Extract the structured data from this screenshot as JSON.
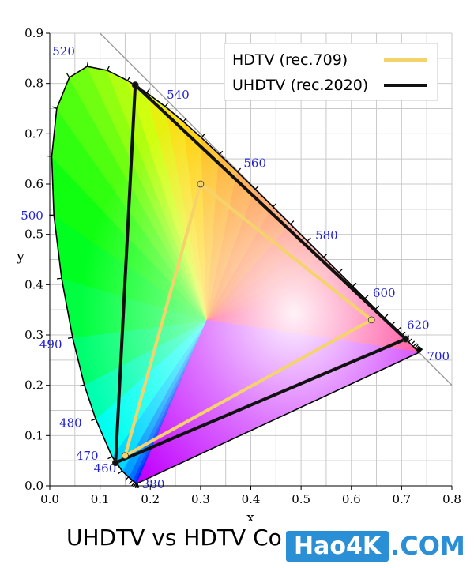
{
  "caption": "UHDTV vs HDTV Co",
  "watermark": {
    "main": "Hao4K",
    "suffix": ".COM"
  },
  "chart_data": {
    "type": "scatter",
    "xlabel": "x",
    "ylabel": "y",
    "xlim": [
      0,
      0.8
    ],
    "ylim": [
      0,
      0.9
    ],
    "grid": true,
    "legend": "top-right",
    "x_ticks": [
      "0.0",
      "0.1",
      "0.2",
      "0.3",
      "0.4",
      "0.5",
      "0.6",
      "0.7",
      "0.8"
    ],
    "y_ticks": [
      "0.0",
      "0.1",
      "0.2",
      "0.3",
      "0.4",
      "0.5",
      "0.6",
      "0.7",
      "0.8",
      "0.9"
    ],
    "spectral_locus": [
      [
        0.1741,
        0.005
      ],
      [
        0.1738,
        0.0049
      ],
      [
        0.1733,
        0.0048
      ],
      [
        0.1726,
        0.0048
      ],
      [
        0.1714,
        0.0051
      ],
      [
        0.1689,
        0.0069
      ],
      [
        0.1644,
        0.0109
      ],
      [
        0.1566,
        0.0177
      ],
      [
        0.144,
        0.0297
      ],
      [
        0.1241,
        0.0578
      ],
      [
        0.0913,
        0.1327
      ],
      [
        0.0687,
        0.2007
      ],
      [
        0.0454,
        0.295
      ],
      [
        0.0235,
        0.4127
      ],
      [
        0.0082,
        0.5384
      ],
      [
        0.0039,
        0.6548
      ],
      [
        0.0139,
        0.7502
      ],
      [
        0.0389,
        0.812
      ],
      [
        0.0743,
        0.8338
      ],
      [
        0.1142,
        0.8262
      ],
      [
        0.1547,
        0.8059
      ],
      [
        0.1929,
        0.7816
      ],
      [
        0.2296,
        0.7543
      ],
      [
        0.2658,
        0.7243
      ],
      [
        0.3016,
        0.6923
      ],
      [
        0.3373,
        0.6589
      ],
      [
        0.3731,
        0.6245
      ],
      [
        0.4087,
        0.5896
      ],
      [
        0.4441,
        0.5547
      ],
      [
        0.4788,
        0.5202
      ],
      [
        0.5125,
        0.4866
      ],
      [
        0.5448,
        0.4544
      ],
      [
        0.5752,
        0.4242
      ],
      [
        0.6029,
        0.3965
      ],
      [
        0.627,
        0.3725
      ],
      [
        0.6482,
        0.3514
      ],
      [
        0.6658,
        0.334
      ],
      [
        0.6801,
        0.3197
      ],
      [
        0.6915,
        0.3083
      ],
      [
        0.7006,
        0.2993
      ],
      [
        0.7079,
        0.292
      ],
      [
        0.714,
        0.2859
      ],
      [
        0.719,
        0.2809
      ],
      [
        0.723,
        0.277
      ],
      [
        0.726,
        0.274
      ],
      [
        0.7283,
        0.2717
      ],
      [
        0.73,
        0.27
      ],
      [
        0.7311,
        0.2689
      ],
      [
        0.732,
        0.268
      ],
      [
        0.7327,
        0.2673
      ],
      [
        0.7334,
        0.2666
      ],
      [
        0.734,
        0.266
      ],
      [
        0.7344,
        0.2656
      ],
      [
        0.7346,
        0.2654
      ],
      [
        0.7347,
        0.2653
      ]
    ],
    "wavelength_labels": [
      {
        "nm": "380",
        "x": 0.1741,
        "y": 0.005
      },
      {
        "nm": "460",
        "x": 0.144,
        "y": 0.0297
      },
      {
        "nm": "470",
        "x": 0.1241,
        "y": 0.0578
      },
      {
        "nm": "480",
        "x": 0.0913,
        "y": 0.1327
      },
      {
        "nm": "490",
        "x": 0.0454,
        "y": 0.295
      },
      {
        "nm": "500",
        "x": 0.0082,
        "y": 0.5384
      },
      {
        "nm": "520",
        "x": 0.0743,
        "y": 0.8338
      },
      {
        "nm": "540",
        "x": 0.2296,
        "y": 0.7543
      },
      {
        "nm": "560",
        "x": 0.3731,
        "y": 0.6245
      },
      {
        "nm": "580",
        "x": 0.5125,
        "y": 0.4866
      },
      {
        "nm": "600",
        "x": 0.627,
        "y": 0.3725
      },
      {
        "nm": "620",
        "x": 0.6915,
        "y": 0.3083
      },
      {
        "nm": "700",
        "x": 0.7347,
        "y": 0.2653
      }
    ],
    "series": [
      {
        "name": "HDTV (rec.709)",
        "color": "#f5d36b",
        "points": [
          [
            0.64,
            0.33
          ],
          [
            0.3,
            0.6
          ],
          [
            0.15,
            0.06
          ]
        ]
      },
      {
        "name": "UHDTV (rec.2020)",
        "color": "#111111",
        "points": [
          [
            0.708,
            0.292
          ],
          [
            0.17,
            0.797
          ],
          [
            0.131,
            0.046
          ]
        ]
      }
    ]
  }
}
